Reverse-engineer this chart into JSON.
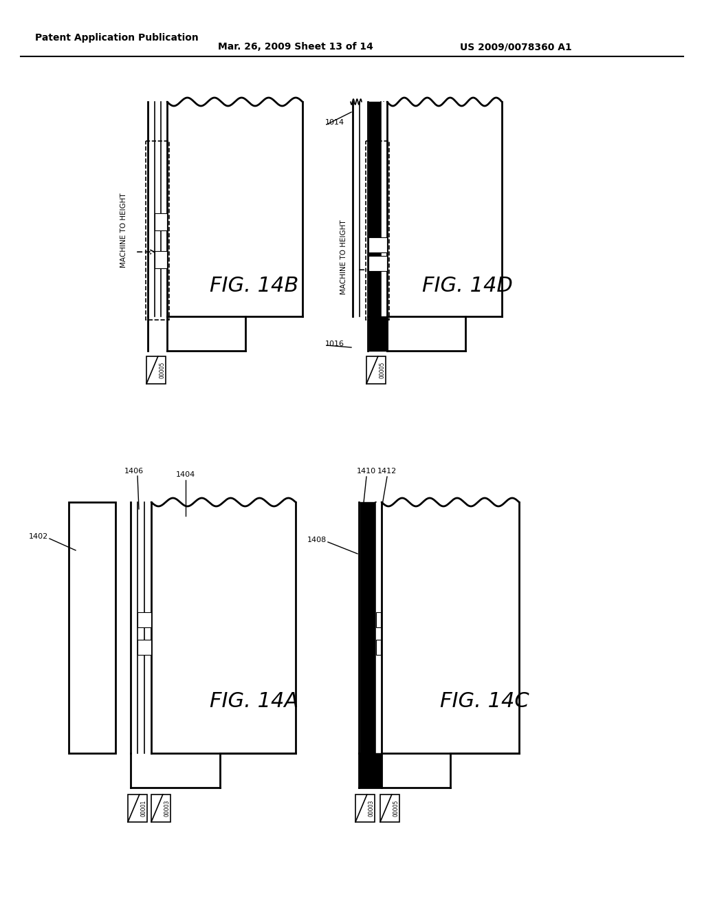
{
  "background_color": "#ffffff",
  "header_left": "Patent Application Publication",
  "header_mid": "Mar. 26, 2009 Sheet 13 of 14",
  "header_right": "US 2009/0078360 A1",
  "fig14B_label": "FIG. 14B",
  "fig14D_label": "FIG. 14D",
  "fig14A_label": "FIG. 14A",
  "fig14C_label": "FIG. 14C",
  "machine_to_height": "MACHINE TO HEIGHT",
  "ref_1014": "1014",
  "ref_1016": "1016",
  "ref_1402": "1402",
  "ref_1404": "1404",
  "ref_1406": "1406",
  "ref_1408": "1408",
  "ref_1410": "1410",
  "ref_1412": "1412",
  "label_00001": "00001",
  "label_00003": "00003",
  "label_00005": "00005"
}
